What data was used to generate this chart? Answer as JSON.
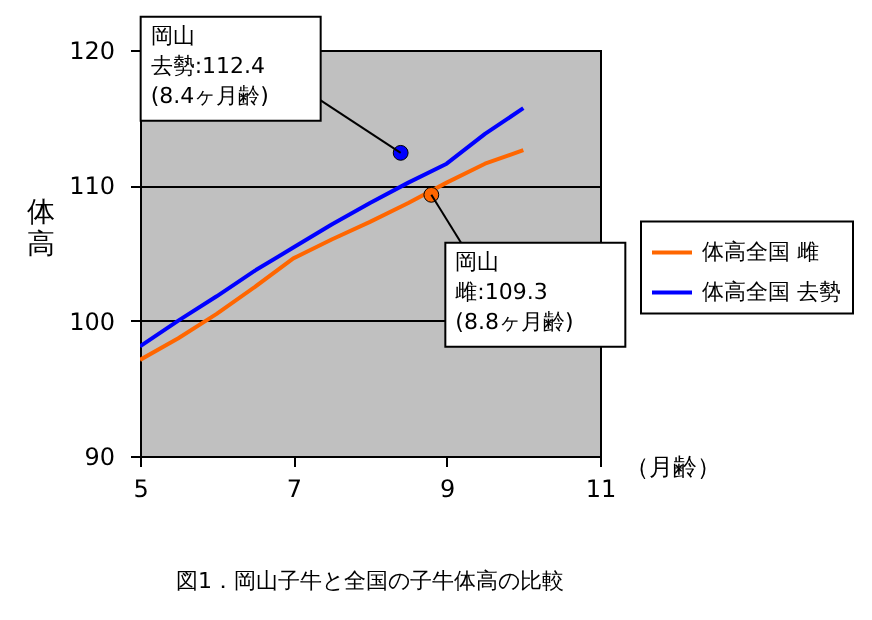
{
  "chart_data": {
    "type": "line",
    "title": "図1．岡山子牛と全国の子牛体高の比較",
    "ylabel": "体高",
    "xlabel": "（月齢）",
    "xlim": [
      5,
      11
    ],
    "xticks": [
      5,
      7,
      9,
      11
    ],
    "ylim": [
      90,
      120
    ],
    "yticks": [
      90,
      100,
      110,
      120
    ],
    "grid": "y",
    "legend": "right",
    "series": [
      {
        "name": "体高全国 雌",
        "color": "#ff6600",
        "x": [
          5,
          5.5,
          6,
          6.5,
          7,
          7.5,
          8,
          8.5,
          9,
          9.5,
          10
        ],
        "values": [
          97.1,
          98.7,
          100.5,
          102.5,
          104.6,
          106.0,
          107.3,
          108.7,
          110.2,
          111.6,
          112.6
        ]
      },
      {
        "name": "体高全国 去勢",
        "color": "#0000ff",
        "x": [
          5,
          5.5,
          6,
          6.5,
          7,
          7.5,
          8,
          8.5,
          9,
          9.5,
          10
        ],
        "values": [
          98.1,
          100.0,
          101.8,
          103.7,
          105.4,
          107.1,
          108.7,
          110.2,
          111.6,
          113.8,
          115.7
        ]
      },
      {
        "type": "scatter",
        "color": "#0000ff",
        "x": [
          8.4
        ],
        "values": [
          112.4
        ]
      },
      {
        "type": "scatter",
        "color": "#ff6600",
        "x": [
          8.8
        ],
        "values": [
          109.3
        ]
      }
    ],
    "annotations": [
      {
        "text": "岡山去勢:112.4(8.4ヶ月齢)",
        "x": 8.4,
        "y": 112.4
      },
      {
        "text": "岡山雌:109.3(8.8ヶ月齢)",
        "x": 8.8,
        "y": 109.3
      }
    ]
  }
}
